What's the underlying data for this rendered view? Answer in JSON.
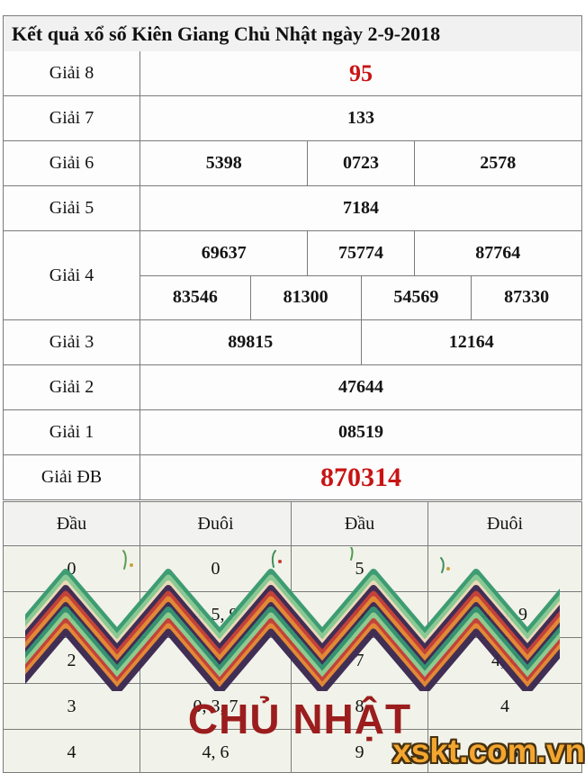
{
  "colors": {
    "value_red": "#c81414",
    "watermark_dark_red": "#9b1d1d",
    "watermark_orange": "#f3a62f"
  },
  "results_table": {
    "title": "Kết quả xổ số Kiên Giang Chủ Nhật ngày 2-9-2018",
    "rows": [
      {
        "label": "Giải 8",
        "lines": [
          [
            "95"
          ]
        ],
        "emphasis": "g8red"
      },
      {
        "label": "Giải 7",
        "lines": [
          [
            "133"
          ]
        ]
      },
      {
        "label": "Giải 6",
        "lines": [
          [
            "5398",
            "0723",
            "2578"
          ]
        ]
      },
      {
        "label": "Giải 5",
        "lines": [
          [
            "7184"
          ]
        ]
      },
      {
        "label": "Giải 4",
        "lines": [
          [
            "69637",
            "75774",
            "87764"
          ],
          [
            "83546",
            "81300",
            "54569",
            "87330"
          ]
        ]
      },
      {
        "label": "Giải 3",
        "lines": [
          [
            "89815",
            "12164"
          ]
        ]
      },
      {
        "label": "Giải 2",
        "lines": [
          [
            "47644"
          ]
        ]
      },
      {
        "label": "Giải 1",
        "lines": [
          [
            "08519"
          ]
        ]
      },
      {
        "label": "Giải ĐB",
        "lines": [
          [
            "870314"
          ]
        ],
        "emphasis": "dbred"
      }
    ]
  },
  "head_tail_table": {
    "headers": [
      "Đầu",
      "Đuôi",
      "Đầu",
      "Đuôi"
    ],
    "rows": [
      [
        "0",
        "0",
        "5",
        ""
      ],
      [
        "1",
        "4, 5, 9",
        "6",
        "4, 4, 9"
      ],
      [
        "2",
        "3",
        "7",
        "4, 8"
      ],
      [
        "3",
        "0, 3, 7",
        "8",
        "4"
      ],
      [
        "4",
        "4, 6",
        "9",
        "5, 8"
      ]
    ]
  },
  "watermarks": {
    "day_text": "CHỦ NHẬT",
    "site_text": "xskt.com.vn"
  }
}
